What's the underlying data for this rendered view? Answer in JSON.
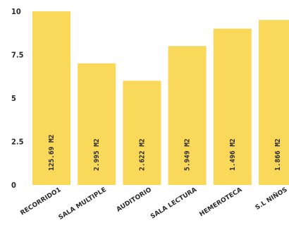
{
  "chart_data": {
    "type": "bar",
    "categories": [
      "RECORRIDO1",
      "SALA MULTIPLE",
      "AUDITORIO",
      "SALA LECTURA",
      "HEMEROTECA",
      "S.L NIÑOS"
    ],
    "values": [
      10,
      7,
      6,
      8,
      9,
      9.5
    ],
    "data_labels": [
      "125.69 M2",
      "2.995 M2",
      "2.622 M2",
      "5.949 M2",
      "1.496 M2",
      "1.866 M2"
    ],
    "title": "",
    "xlabel": "",
    "ylabel": "",
    "ylim": [
      0,
      10
    ],
    "yticks": [
      "0",
      "2.5",
      "5",
      "7.5",
      "10"
    ],
    "grid": false,
    "legend": "none",
    "bar_color": "#f9d85a"
  }
}
